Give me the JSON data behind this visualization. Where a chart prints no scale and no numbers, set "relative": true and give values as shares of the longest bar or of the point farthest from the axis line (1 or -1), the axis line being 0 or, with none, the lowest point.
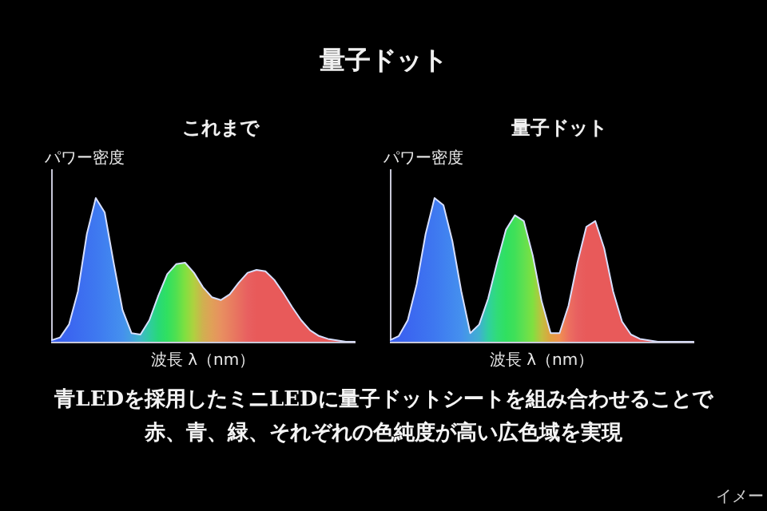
{
  "chart_data": [
    {
      "type": "other",
      "title": "量子ドット"
    },
    {
      "type": "area",
      "title": "これまで",
      "ylabel": "パワー密度",
      "xlabel": "波長 λ（nm）",
      "relative": true,
      "categories": [
        null,
        null,
        null,
        null,
        null,
        null,
        null,
        null,
        null,
        null,
        null,
        null,
        null,
        null,
        null,
        null,
        null,
        null,
        null,
        null,
        null,
        null,
        null,
        null,
        null,
        null,
        null,
        null,
        null,
        null,
        null,
        null,
        null,
        null,
        null
      ],
      "series": [
        {
          "color": "#d8e0ff",
          "values": [
            0.01,
            0.03,
            0.12,
            0.35,
            0.75,
            1,
            0.9,
            0.55,
            0.22,
            0.06,
            0.05,
            0.15,
            0.32,
            0.47,
            0.54,
            0.55,
            0.48,
            0.38,
            0.31,
            0.29,
            0.33,
            0.41,
            0.48,
            0.5,
            0.49,
            0.43,
            0.34,
            0.24,
            0.15,
            0.08,
            0.04,
            0.02,
            0.01,
            0,
            0
          ],
          "colors": [
            "#3a5ff0",
            "#3a62f0",
            "#3b66f0",
            "#3c6cf0",
            "#3d72f0",
            "#3e78f0",
            "#4080f0",
            "#4288ef",
            "#4590ee",
            "#45a0e0",
            "#40b8c8",
            "#30cca0",
            "#28d878",
            "#30e060",
            "#50e050",
            "#80e040",
            "#b0d040",
            "#d0b050",
            "#e0a058",
            "#e89060",
            "#e88060",
            "#e87060",
            "#e86060",
            "#e85a5a",
            "#e85a5a",
            "#e85a5a",
            "#e85a5a",
            "#e85a5a",
            "#e85a5a",
            "#e85a5a",
            "#e85a5a",
            "#e85a5a",
            "#e85a5a",
            "#e85a5a",
            "#e85a5a"
          ]
        }
      ]
    },
    {
      "type": "area",
      "title": "量子ドット",
      "ylabel": "パワー密度",
      "xlabel": "波長 λ（nm）",
      "relative": true,
      "categories": [
        null,
        null,
        null,
        null,
        null,
        null,
        null,
        null,
        null,
        null,
        null,
        null,
        null,
        null,
        null,
        null,
        null,
        null,
        null,
        null,
        null,
        null,
        null,
        null,
        null,
        null,
        null,
        null,
        null,
        null,
        null,
        null,
        null,
        null,
        null
      ],
      "series": [
        {
          "color": "#d8e0ff",
          "values": [
            0.01,
            0.04,
            0.15,
            0.4,
            0.75,
            1,
            0.95,
            0.7,
            0.35,
            0.06,
            0.12,
            0.3,
            0.55,
            0.78,
            0.88,
            0.84,
            0.6,
            0.28,
            0.06,
            0.06,
            0.25,
            0.55,
            0.8,
            0.84,
            0.65,
            0.35,
            0.14,
            0.05,
            0.02,
            0.01,
            0,
            0,
            0,
            0,
            0
          ],
          "colors": [
            "#3a5ff0",
            "#3a62f0",
            "#3b66f0",
            "#3c6cf0",
            "#3d72f0",
            "#3e78f0",
            "#4080f0",
            "#4288ef",
            "#4590ee",
            "#45a0e0",
            "#40b0d0",
            "#30d0a0",
            "#30dc78",
            "#30e060",
            "#40e058",
            "#60e050",
            "#80e040",
            "#c0c040",
            "#e0a040",
            "#f09050",
            "#ec7060",
            "#e86060",
            "#e85a5a",
            "#e85a5a",
            "#e85a5a",
            "#e85a5a",
            "#e85a5a",
            "#e85a5a",
            "#e85a5a",
            "#e85a5a",
            "#e85a5a",
            "#e85a5a",
            "#e85a5a",
            "#e85a5a",
            "#e85a5a"
          ]
        }
      ]
    },
    {
      "type": "other",
      "annotations": [
        "青LEDを採用したミニLEDに量子ドットシートを組み合わせることで",
        "赤、青、緑、それぞれの色純度が高い広色域を実現",
        "イメー"
      ]
    }
  ]
}
